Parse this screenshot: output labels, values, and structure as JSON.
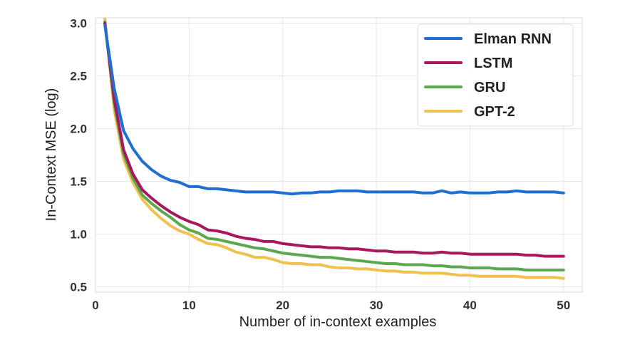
{
  "chart_data": {
    "type": "line",
    "title": "",
    "xlabel": "Number of in-context examples",
    "ylabel": "In-Context MSE (log)",
    "xlim": [
      0,
      52
    ],
    "ylim": [
      0.45,
      3.05
    ],
    "xticks": [
      0,
      10,
      20,
      30,
      40,
      50
    ],
    "yticks": [
      0.5,
      1.0,
      1.5,
      2.0,
      2.5,
      3.0
    ],
    "xtick_labels": [
      "0",
      "10",
      "20",
      "30",
      "40",
      "50"
    ],
    "ytick_labels": [
      "0.5",
      "1.0",
      "1.5",
      "2.0",
      "2.5",
      "3.0"
    ],
    "grid": true,
    "legend_position": "top-right",
    "x": [
      1,
      2,
      3,
      4,
      5,
      6,
      7,
      8,
      9,
      10,
      11,
      12,
      13,
      14,
      15,
      16,
      17,
      18,
      19,
      20,
      21,
      22,
      23,
      24,
      25,
      26,
      27,
      28,
      29,
      30,
      31,
      32,
      33,
      34,
      35,
      36,
      37,
      38,
      39,
      40,
      41,
      42,
      43,
      44,
      45,
      46,
      47,
      48,
      49,
      50
    ],
    "series": [
      {
        "name": "Elman RNN",
        "color": "#1f6fd1",
        "values": [
          2.98,
          2.38,
          1.98,
          1.81,
          1.69,
          1.61,
          1.55,
          1.51,
          1.49,
          1.45,
          1.45,
          1.43,
          1.43,
          1.42,
          1.41,
          1.4,
          1.4,
          1.4,
          1.4,
          1.39,
          1.38,
          1.39,
          1.39,
          1.4,
          1.4,
          1.41,
          1.41,
          1.41,
          1.4,
          1.4,
          1.4,
          1.4,
          1.4,
          1.4,
          1.39,
          1.39,
          1.41,
          1.39,
          1.4,
          1.39,
          1.39,
          1.39,
          1.4,
          1.4,
          1.41,
          1.4,
          1.4,
          1.4,
          1.4,
          1.39
        ]
      },
      {
        "name": "LSTM",
        "color": "#a8185f",
        "values": [
          3.0,
          2.28,
          1.8,
          1.57,
          1.42,
          1.34,
          1.27,
          1.21,
          1.16,
          1.12,
          1.09,
          1.04,
          1.03,
          1.01,
          0.98,
          0.96,
          0.95,
          0.93,
          0.93,
          0.91,
          0.9,
          0.89,
          0.88,
          0.88,
          0.87,
          0.87,
          0.86,
          0.86,
          0.85,
          0.84,
          0.84,
          0.83,
          0.83,
          0.83,
          0.82,
          0.82,
          0.83,
          0.82,
          0.82,
          0.81,
          0.81,
          0.81,
          0.81,
          0.81,
          0.81,
          0.8,
          0.8,
          0.79,
          0.79,
          0.79
        ]
      },
      {
        "name": "GRU",
        "color": "#5aa84f",
        "values": [
          3.01,
          2.24,
          1.76,
          1.53,
          1.37,
          1.29,
          1.22,
          1.16,
          1.09,
          1.04,
          1.01,
          0.96,
          0.95,
          0.93,
          0.91,
          0.89,
          0.87,
          0.86,
          0.84,
          0.82,
          0.81,
          0.8,
          0.79,
          0.78,
          0.78,
          0.77,
          0.76,
          0.75,
          0.74,
          0.73,
          0.72,
          0.72,
          0.71,
          0.71,
          0.71,
          0.7,
          0.7,
          0.69,
          0.69,
          0.68,
          0.68,
          0.68,
          0.67,
          0.67,
          0.67,
          0.66,
          0.66,
          0.66,
          0.66,
          0.66
        ]
      },
      {
        "name": "GPT-2",
        "color": "#f0c050",
        "values": [
          3.04,
          2.18,
          1.71,
          1.49,
          1.33,
          1.23,
          1.15,
          1.08,
          1.03,
          1.0,
          0.95,
          0.91,
          0.9,
          0.87,
          0.83,
          0.81,
          0.78,
          0.78,
          0.76,
          0.73,
          0.72,
          0.72,
          0.71,
          0.71,
          0.69,
          0.68,
          0.68,
          0.67,
          0.67,
          0.66,
          0.65,
          0.65,
          0.64,
          0.64,
          0.63,
          0.63,
          0.63,
          0.62,
          0.61,
          0.61,
          0.6,
          0.6,
          0.6,
          0.6,
          0.6,
          0.59,
          0.59,
          0.59,
          0.59,
          0.58
        ]
      }
    ]
  }
}
